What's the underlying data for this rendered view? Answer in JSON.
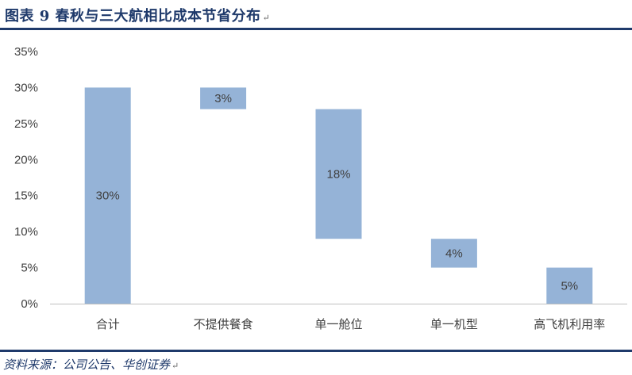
{
  "figure": {
    "title": "图表 9  春秋与三大航相比成本节省分布",
    "source": "资料来源：公司公告、华创证券"
  },
  "chart_data": {
    "type": "bar",
    "subtype": "waterfall",
    "categories": [
      "合计",
      "不提供餐食",
      "单一舱位",
      "单一机型",
      "高飞机利用率"
    ],
    "bars": [
      {
        "category": "合计",
        "bottom": 0,
        "top": 30,
        "label": "30%"
      },
      {
        "category": "不提供餐食",
        "bottom": 27,
        "top": 30,
        "label": "3%"
      },
      {
        "category": "单一舱位",
        "bottom": 9,
        "top": 27,
        "label": "18%"
      },
      {
        "category": "单一机型",
        "bottom": 5,
        "top": 9,
        "label": "4%"
      },
      {
        "category": "高飞机利用率",
        "bottom": 0,
        "top": 5,
        "label": "5%"
      }
    ],
    "ylim": [
      0,
      35
    ],
    "yticks": [
      0,
      5,
      10,
      15,
      20,
      25,
      30,
      35
    ],
    "ytick_labels": [
      "0%",
      "5%",
      "10%",
      "15%",
      "20%",
      "25%",
      "30%",
      "35%"
    ],
    "grid": false,
    "legend": "none",
    "colors": {
      "bar": "#95b3d7",
      "axis": "#bfbfbf",
      "text": "#404040"
    }
  }
}
